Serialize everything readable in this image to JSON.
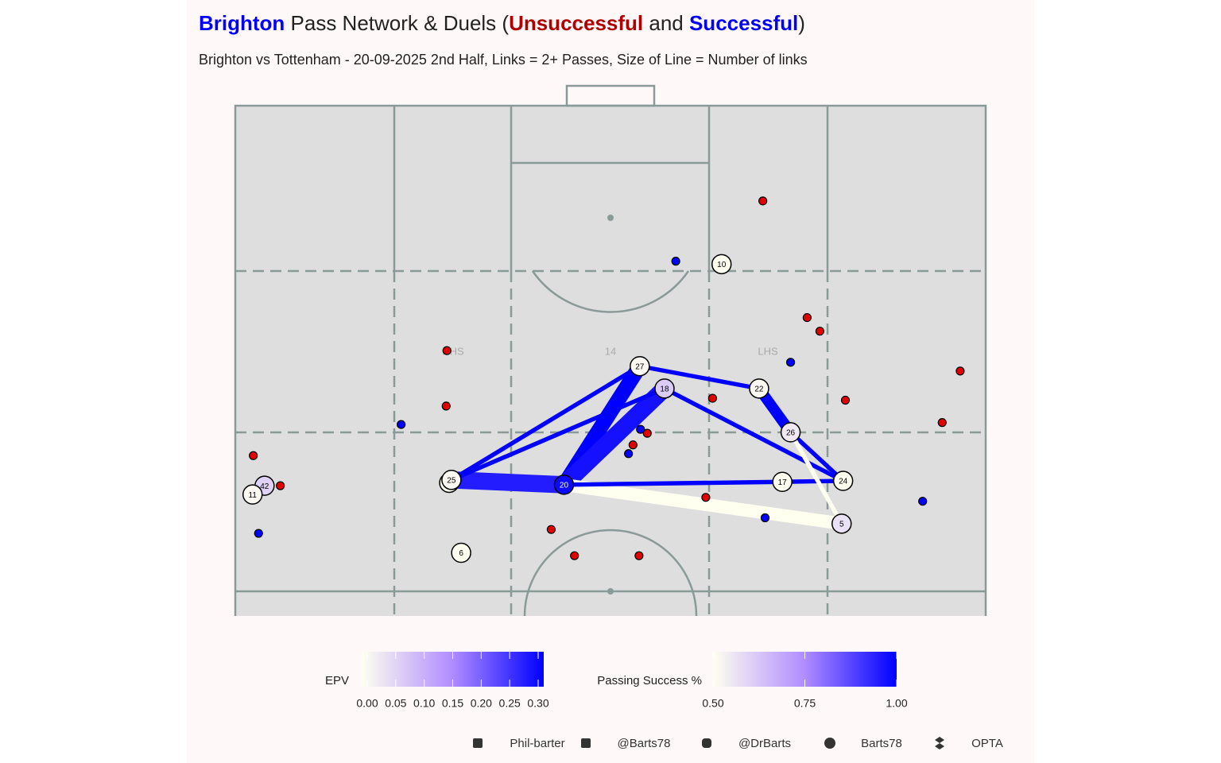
{
  "chart_data": {
    "type": "pass-network",
    "title": [
      {
        "text": "Brighton",
        "color": "#0000ff",
        "bold": true
      },
      {
        "text": " Pass Network & Duels (",
        "color": "#222222",
        "bold": false
      },
      {
        "text": "Unsuccessful",
        "color": "#b20000",
        "bold": true
      },
      {
        "text": " and ",
        "color": "#222222",
        "bold": false
      },
      {
        "text": "Successful",
        "color": "#0000ff",
        "bold": true
      },
      {
        "text": ")",
        "color": "#222222",
        "bold": false
      }
    ],
    "subtitle": "Brighton vs Tottenham - 20-09-2025 2nd Half, Links = 2+ Passes, Size of Line = Number of links",
    "xlim": [
      0,
      100
    ],
    "ylim": [
      47.5,
      100
    ],
    "zone_labels": [
      "RHS",
      "14",
      "LHS"
    ],
    "nodes": [
      {
        "label": "10",
        "x": 64.8,
        "y": 83.7,
        "epv": 0.0
      },
      {
        "label": "27",
        "x": 53.9,
        "y": 73.2,
        "epv": 0.01
      },
      {
        "label": "18",
        "x": 57.2,
        "y": 70.9,
        "epv": 0.07
      },
      {
        "label": "22",
        "x": 69.8,
        "y": 70.9,
        "epv": 0.01
      },
      {
        "label": "26",
        "x": 74.0,
        "y": 66.4,
        "epv": 0.03
      },
      {
        "label": "24",
        "x": 81.0,
        "y": 61.4,
        "epv": 0.0
      },
      {
        "label": "17",
        "x": 72.9,
        "y": 61.3,
        "epv": 0.0
      },
      {
        "label": "5",
        "x": 80.8,
        "y": 57.0,
        "epv": 0.04
      },
      {
        "label": "20",
        "x": 43.8,
        "y": 61.0,
        "epv": 0.3
      },
      {
        "label": "34",
        "x": 28.5,
        "y": 61.2,
        "epv": 0.0
      },
      {
        "label": "25",
        "x": 28.8,
        "y": 61.5,
        "epv": 0.01
      },
      {
        "label": "42",
        "x": 3.9,
        "y": 60.9,
        "epv": 0.06
      },
      {
        "label": "11",
        "x": 2.3,
        "y": 60.0,
        "epv": 0.01
      },
      {
        "label": "6",
        "x": 30.1,
        "y": 54.0,
        "epv": 0.0
      }
    ],
    "links": [
      {
        "from": "25",
        "to": "20",
        "count": 8,
        "success": 0.95
      },
      {
        "from": "20",
        "to": "27",
        "count": 7,
        "success": 1.0
      },
      {
        "from": "20",
        "to": "18",
        "count": 8,
        "success": 0.97
      },
      {
        "from": "22",
        "to": "26",
        "count": 5,
        "success": 1.0
      },
      {
        "from": "20",
        "to": "5",
        "count": 6,
        "success": 0.5
      },
      {
        "from": "20",
        "to": "17",
        "count": 2,
        "success": 1.0
      },
      {
        "from": "25",
        "to": "27",
        "count": 2,
        "success": 1.0
      },
      {
        "from": "25",
        "to": "18",
        "count": 2,
        "success": 1.0
      },
      {
        "from": "27",
        "to": "22",
        "count": 2,
        "success": 1.0
      },
      {
        "from": "18",
        "to": "24",
        "count": 2,
        "success": 1.0
      },
      {
        "from": "26",
        "to": "24",
        "count": 2,
        "success": 1.0
      },
      {
        "from": "17",
        "to": "24",
        "count": 2,
        "success": 1.0
      },
      {
        "from": "26",
        "to": "5",
        "count": 2,
        "success": 0.5
      }
    ],
    "duels": [
      {
        "name": "Unsuccessful",
        "color": "#e00000",
        "x": [
          70.3,
          76.2,
          77.9,
          96.6,
          81.3,
          94.2,
          63.6,
          28.2,
          28.1,
          2.4,
          6.0,
          54.9,
          53.0,
          62.7,
          42.1,
          45.2,
          53.8
        ],
        "y": [
          90.2,
          78.2,
          76.8,
          72.7,
          69.7,
          67.4,
          69.9,
          74.8,
          69.1,
          64.0,
          60.9,
          66.3,
          65.1,
          59.7,
          56.4,
          53.7,
          53.7
        ]
      },
      {
        "name": "Successful",
        "color": "#0000ff",
        "x": [
          58.7,
          74.0,
          22.1,
          54.0,
          52.4,
          3.1,
          91.6,
          70.6
        ],
        "y": [
          84.0,
          73.6,
          67.2,
          66.7,
          64.2,
          56.0,
          59.3,
          57.6
        ]
      }
    ],
    "legends": [
      {
        "title": "EPV",
        "lim": [
          0,
          0.31
        ],
        "colors": [
          "#fffff0",
          "#b08cff",
          "#0000ff"
        ],
        "ticks": [
          {
            "value": 0,
            "label": "0.00"
          },
          0.05,
          {
            "value": 0.1,
            "label": "0.10"
          },
          0.15,
          {
            "value": 0.2,
            "label": "0.20"
          },
          0.25,
          {
            "value": 0.3,
            "label": "0.30"
          }
        ]
      },
      {
        "title": "Passing Success %",
        "lim": [
          0.5,
          1.0
        ],
        "colors": [
          "#fffff0",
          "#b08cff",
          "#0000ff"
        ],
        "ticks": [
          {
            "value": 0.5,
            "label": "0.50"
          },
          0.75,
          {
            "value": 1.0,
            "label": "1.00"
          }
        ]
      }
    ],
    "footer": [
      "Phil-barter",
      "@Barts78",
      "@DrBarts",
      "Barts78",
      "OPTA"
    ]
  }
}
